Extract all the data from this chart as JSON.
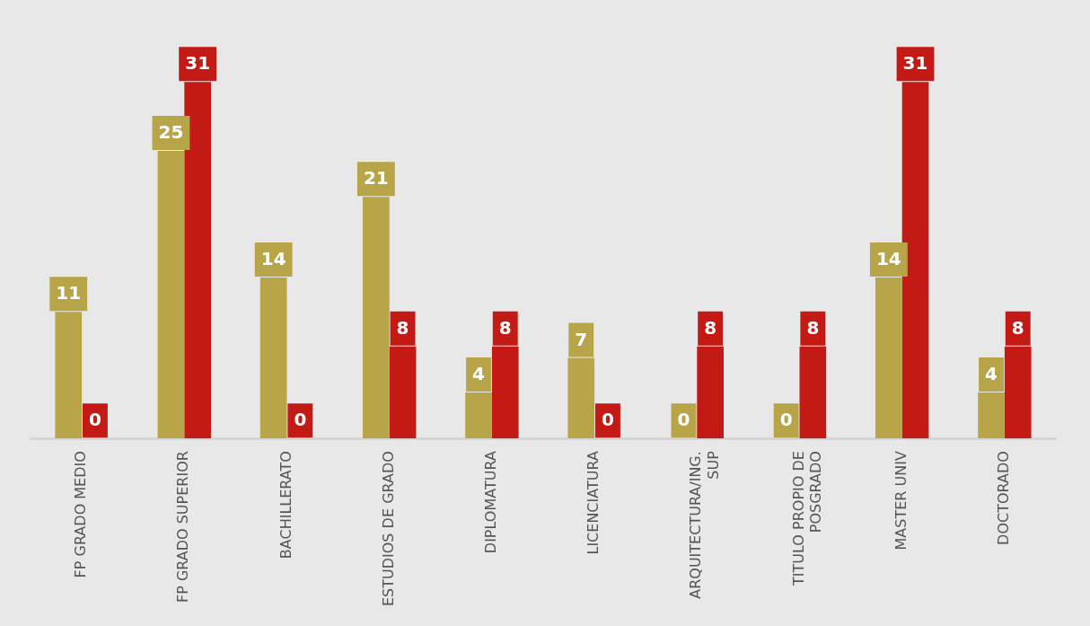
{
  "chart_data": {
    "type": "bar",
    "categories": [
      "FP GRADO MEDIO",
      "FP GRADO SUPERIOR",
      "BACHILLERATO",
      "ESTUDIOS DE GRADO",
      "DIPLOMATURA",
      "LICENCIATURA",
      "ARQUITECTURA/ING. SUP",
      "TITULO PROPIO DE POSGRADO",
      "MASTER UNIV",
      "DOCTORADO"
    ],
    "series": [
      {
        "color": "#b8a449",
        "values": [
          11,
          25,
          14,
          21,
          4,
          7,
          0,
          0,
          14,
          4
        ]
      },
      {
        "color": "#c41a16",
        "values": [
          0,
          31,
          0,
          8,
          8,
          0,
          8,
          8,
          31,
          8
        ]
      }
    ],
    "data_labels": true,
    "grid": false,
    "legend": false
  }
}
